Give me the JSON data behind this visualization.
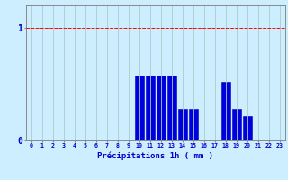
{
  "hours": [
    0,
    1,
    2,
    3,
    4,
    5,
    6,
    7,
    8,
    9,
    10,
    11,
    12,
    13,
    14,
    15,
    16,
    17,
    18,
    19,
    20,
    21,
    22,
    23
  ],
  "values": [
    0,
    0,
    0,
    0,
    0,
    0,
    0,
    0,
    0,
    0,
    0.58,
    0.58,
    0.58,
    0.58,
    0.28,
    0.28,
    0,
    0,
    0.52,
    0.28,
    0.22,
    0,
    0,
    0
  ],
  "bar_color": "#0000dd",
  "bar_edge_color": "#0000bb",
  "background_color": "#cceeff",
  "grid_color": "#aacccc",
  "axis_color": "#888888",
  "xlabel": "Précipitations 1h ( mm )",
  "xlabel_color": "#0000cc",
  "tick_color": "#0000cc",
  "ytick_labels": [
    "0",
    "1"
  ],
  "ytick_values": [
    0,
    1
  ],
  "ylim": [
    0,
    1.2
  ],
  "xlim": [
    -0.5,
    23.5
  ],
  "figsize": [
    3.2,
    2.0
  ],
  "dpi": 100,
  "redline_y": 1.0
}
